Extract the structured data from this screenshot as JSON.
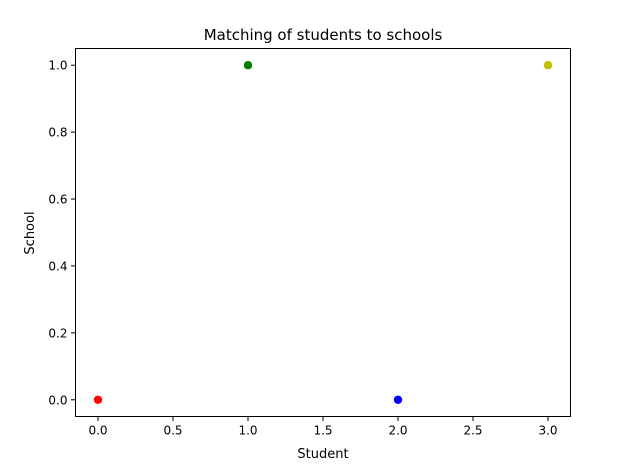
{
  "chart_data": {
    "type": "scatter",
    "title": "Matching of students to schools",
    "xlabel": "Student",
    "ylabel": "School",
    "xlim": [
      -0.15,
      3.15
    ],
    "ylim": [
      -0.05,
      1.05
    ],
    "xticks": [
      0.0,
      0.5,
      1.0,
      1.5,
      2.0,
      2.5,
      3.0
    ],
    "xtick_labels": [
      "0.0",
      "0.5",
      "1.0",
      "1.5",
      "2.0",
      "2.5",
      "3.0"
    ],
    "yticks": [
      0.0,
      0.2,
      0.4,
      0.6,
      0.8,
      1.0
    ],
    "ytick_labels": [
      "0.0",
      "0.2",
      "0.4",
      "0.6",
      "0.8",
      "1.0"
    ],
    "grid": false,
    "legend": "none",
    "points": [
      {
        "x": 0,
        "y": 0,
        "color": "#ff0000"
      },
      {
        "x": 1,
        "y": 1,
        "color": "#008000"
      },
      {
        "x": 2,
        "y": 0,
        "color": "#0000ff"
      },
      {
        "x": 3,
        "y": 1,
        "color": "#bfbf00"
      }
    ]
  }
}
